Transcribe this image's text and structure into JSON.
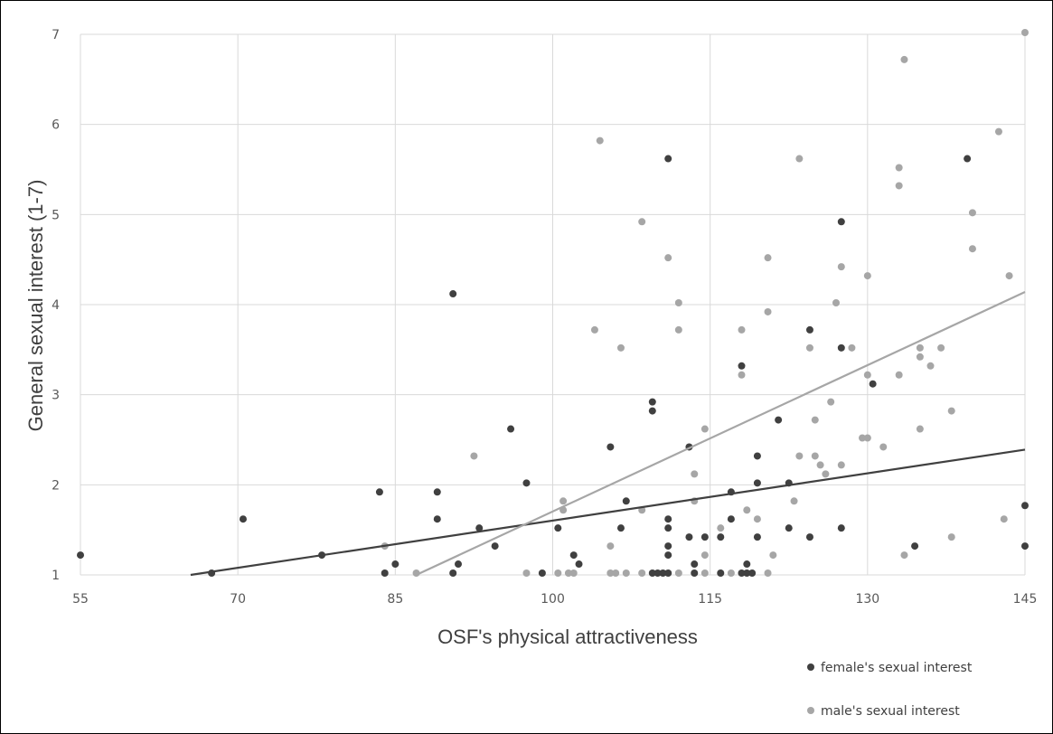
{
  "chart_data": {
    "type": "scatter",
    "xlabel": "OSF's physical attractiveness",
    "ylabel": "General sexual interest (1-7)",
    "xlim": [
      55,
      145
    ],
    "ylim": [
      1,
      7
    ],
    "xticks": [
      55,
      70,
      85,
      100,
      115,
      130,
      145
    ],
    "yticks": [
      1,
      2,
      3,
      4,
      5,
      6,
      7
    ],
    "grid": true,
    "legend_position": "bottom-right",
    "series": [
      {
        "name": "female's sexual interest",
        "color": "#404040",
        "trendline": [
          [
            65.5,
            1.0
          ],
          [
            145,
            2.39
          ]
        ],
        "points": [
          [
            55,
            1.22
          ],
          [
            67.5,
            1.02
          ],
          [
            70.5,
            1.62
          ],
          [
            78,
            1.22
          ],
          [
            83.5,
            1.92
          ],
          [
            84,
            1.02
          ],
          [
            85,
            1.12
          ],
          [
            89,
            1.92
          ],
          [
            89,
            1.62
          ],
          [
            90.5,
            4.12
          ],
          [
            90.5,
            1.02
          ],
          [
            91,
            1.12
          ],
          [
            93,
            1.52
          ],
          [
            94.5,
            1.32
          ],
          [
            96,
            2.62
          ],
          [
            97.5,
            2.02
          ],
          [
            99,
            1.02
          ],
          [
            100.5,
            1.52
          ],
          [
            102,
            1.22
          ],
          [
            102.5,
            1.12
          ],
          [
            105.5,
            2.42
          ],
          [
            106.5,
            1.52
          ],
          [
            107,
            1.82
          ],
          [
            109.5,
            2.92
          ],
          [
            109.5,
            2.82
          ],
          [
            109.5,
            1.02
          ],
          [
            110,
            1.02
          ],
          [
            110.5,
            1.02
          ],
          [
            111,
            5.62
          ],
          [
            111,
            1.62
          ],
          [
            111,
            1.52
          ],
          [
            111,
            1.32
          ],
          [
            111,
            1.22
          ],
          [
            111,
            1.02
          ],
          [
            113,
            2.42
          ],
          [
            113,
            1.42
          ],
          [
            113.5,
            1.12
          ],
          [
            113.5,
            1.02
          ],
          [
            114.5,
            1.42
          ],
          [
            116,
            1.42
          ],
          [
            116,
            1.02
          ],
          [
            117,
            1.92
          ],
          [
            117,
            1.62
          ],
          [
            118,
            3.32
          ],
          [
            118,
            1.02
          ],
          [
            118.5,
            1.12
          ],
          [
            118.5,
            1.02
          ],
          [
            119,
            1.02
          ],
          [
            119.5,
            2.32
          ],
          [
            119.5,
            2.02
          ],
          [
            119.5,
            1.42
          ],
          [
            121.5,
            2.72
          ],
          [
            122.5,
            2.02
          ],
          [
            122.5,
            1.52
          ],
          [
            124.5,
            3.72
          ],
          [
            124.5,
            1.42
          ],
          [
            127.5,
            4.92
          ],
          [
            127.5,
            3.52
          ],
          [
            127.5,
            1.52
          ],
          [
            130.5,
            3.12
          ],
          [
            134.5,
            1.32
          ],
          [
            139.5,
            5.62
          ],
          [
            145,
            1.77
          ],
          [
            145,
            1.32
          ]
        ]
      },
      {
        "name": "male's sexual interest",
        "color": "#a6a6a6",
        "trendline": [
          [
            87,
            1.0
          ],
          [
            145,
            4.14
          ]
        ],
        "points": [
          [
            84,
            1.32
          ],
          [
            87,
            1.02
          ],
          [
            92.5,
            2.32
          ],
          [
            97.5,
            1.02
          ],
          [
            100.5,
            1.02
          ],
          [
            101,
            1.82
          ],
          [
            101,
            1.72
          ],
          [
            101.5,
            1.02
          ],
          [
            102,
            1.02
          ],
          [
            104,
            3.72
          ],
          [
            104.5,
            5.82
          ],
          [
            105.5,
            1.32
          ],
          [
            105.5,
            1.02
          ],
          [
            106,
            1.02
          ],
          [
            106.5,
            3.52
          ],
          [
            107,
            1.02
          ],
          [
            108.5,
            4.92
          ],
          [
            108.5,
            1.72
          ],
          [
            108.5,
            1.02
          ],
          [
            111,
            4.52
          ],
          [
            112,
            4.02
          ],
          [
            112,
            3.72
          ],
          [
            112,
            1.02
          ],
          [
            113.5,
            2.12
          ],
          [
            113.5,
            1.82
          ],
          [
            114.5,
            2.62
          ],
          [
            114.5,
            1.22
          ],
          [
            114.5,
            1.02
          ],
          [
            116,
            1.52
          ],
          [
            117,
            1.02
          ],
          [
            118,
            3.72
          ],
          [
            118,
            3.22
          ],
          [
            118.5,
            1.72
          ],
          [
            119.5,
            1.62
          ],
          [
            120.5,
            4.52
          ],
          [
            120.5,
            3.92
          ],
          [
            120.5,
            1.02
          ],
          [
            121,
            1.22
          ],
          [
            123,
            1.82
          ],
          [
            123.5,
            5.62
          ],
          [
            123.5,
            2.32
          ],
          [
            124.5,
            3.52
          ],
          [
            125,
            2.72
          ],
          [
            125,
            2.32
          ],
          [
            125.5,
            2.22
          ],
          [
            126,
            2.12
          ],
          [
            126.5,
            2.92
          ],
          [
            127,
            4.02
          ],
          [
            127.5,
            4.42
          ],
          [
            127.5,
            2.22
          ],
          [
            128.5,
            3.52
          ],
          [
            129.5,
            2.52
          ],
          [
            130,
            4.32
          ],
          [
            130,
            3.22
          ],
          [
            130,
            2.52
          ],
          [
            131.5,
            2.42
          ],
          [
            133,
            5.32
          ],
          [
            133,
            5.52
          ],
          [
            133,
            3.22
          ],
          [
            133.5,
            6.72
          ],
          [
            133.5,
            1.22
          ],
          [
            135,
            3.52
          ],
          [
            135,
            3.42
          ],
          [
            135,
            2.62
          ],
          [
            136,
            3.32
          ],
          [
            137,
            3.52
          ],
          [
            138,
            2.82
          ],
          [
            138,
            1.42
          ],
          [
            140,
            5.02
          ],
          [
            140,
            4.62
          ],
          [
            142.5,
            5.92
          ],
          [
            143,
            1.62
          ],
          [
            143.5,
            4.32
          ],
          [
            145,
            7.02
          ]
        ]
      }
    ]
  }
}
